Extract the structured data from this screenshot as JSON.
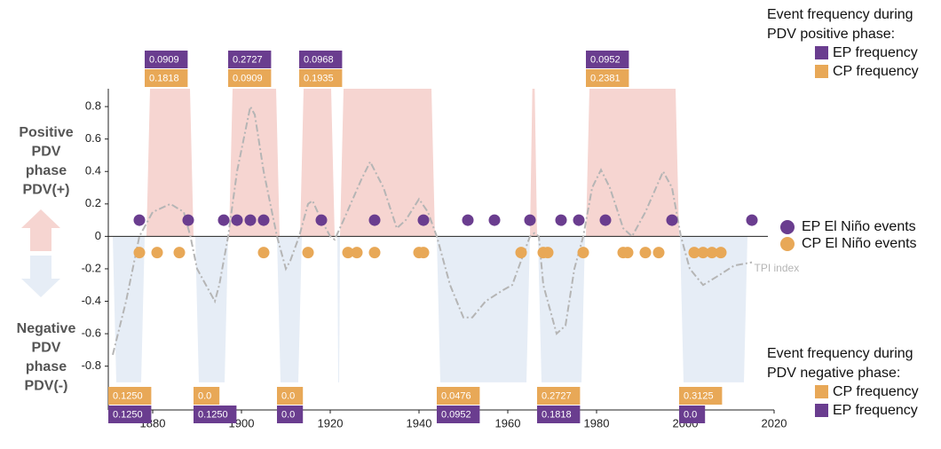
{
  "chart_data": {
    "type": "line",
    "xlim": [
      1870,
      2020
    ],
    "xticks": [
      1880,
      1900,
      1920,
      1940,
      1960,
      1980,
      2000,
      2020
    ],
    "ylim": [
      -1.07,
      0.91
    ],
    "yticks": [
      0.8,
      0.6,
      0.4,
      0.2,
      0,
      -0.2,
      -0.4,
      -0.6,
      -0.8
    ],
    "series": [
      {
        "name": "TPI index",
        "color": "#b5b5b5",
        "x": [
          1871,
          1874,
          1877,
          1880,
          1884,
          1887,
          1888.5,
          1890,
          1894,
          1895,
          1897,
          1899,
          1902,
          1903,
          1905,
          1908,
          1910,
          1911,
          1913,
          1915,
          1916,
          1918,
          1920,
          1921,
          1923,
          1927,
          1929,
          1932,
          1935,
          1937,
          1940,
          1942,
          1944,
          1947,
          1950,
          1952,
          1955,
          1959,
          1961,
          1963,
          1965,
          1966,
          1967,
          1968,
          1971,
          1973,
          1975,
          1977,
          1979,
          1981,
          1983,
          1986,
          1988,
          1991,
          1995,
          1997,
          1999,
          2001,
          2004,
          2007,
          2011,
          2015
        ],
        "values": [
          -0.73,
          -0.4,
          0,
          0.15,
          0.2,
          0.15,
          0,
          -0.2,
          -0.4,
          -0.3,
          0,
          0.4,
          0.8,
          0.75,
          0.4,
          0,
          -0.2,
          -0.15,
          0,
          0.2,
          0.22,
          0.1,
          0,
          -0.02,
          0.1,
          0.35,
          0.46,
          0.3,
          0.05,
          0.1,
          0.23,
          0.15,
          0,
          -0.3,
          -0.5,
          -0.5,
          -0.4,
          -0.33,
          -0.3,
          -0.15,
          0,
          0.02,
          0,
          -0.3,
          -0.6,
          -0.55,
          -0.2,
          0,
          0.3,
          0.41,
          0.3,
          0.05,
          0,
          0.15,
          0.4,
          0.3,
          0,
          -0.2,
          -0.3,
          -0.25,
          -0.18,
          -0.16
        ]
      }
    ],
    "events": [
      {
        "name": "EP El Niño events",
        "color": "#6a3d8f",
        "y": 0.1,
        "x": [
          1877,
          1888,
          1896,
          1899,
          1902,
          1905,
          1918,
          1930,
          1941,
          1951,
          1957,
          1965,
          1972,
          1976,
          1982,
          1997,
          2015
        ]
      },
      {
        "name": "CP El Niño events",
        "color": "#e8a857",
        "y": -0.1,
        "x": [
          1877,
          1881,
          1886,
          1905,
          1915,
          1924,
          1926,
          1930,
          1940,
          1941,
          1963,
          1968,
          1969,
          1977,
          1986,
          1987,
          1991,
          1994,
          2002,
          2004,
          2006,
          2008
        ]
      }
    ],
    "positive_phase": {
      "color": "#f6d5d1",
      "periods": [
        [
          1878.6,
          1889.2
        ],
        [
          1897.2,
          1908.6
        ],
        [
          1913.2,
          1921
        ],
        [
          1922.2,
          1943.6
        ],
        [
          1965,
          1966.6
        ],
        [
          1977.6,
          1998.6
        ]
      ]
    },
    "negative_phase": {
      "color": "#e6edf6",
      "periods": [
        [
          1871,
          1878.2
        ],
        [
          1889.6,
          1897
        ],
        [
          1908,
          1913.6
        ],
        [
          1921.6,
          1922.2
        ],
        [
          1944,
          1965
        ],
        [
          1966.8,
          1977.4
        ],
        [
          1998.8,
          2014
        ]
      ]
    },
    "phase_labels": {
      "positive": [
        "Positive",
        "PDV",
        "phase",
        "PDV(+)"
      ],
      "negative": [
        "Negative",
        "PDV",
        "phase",
        "PDV(-)"
      ]
    },
    "frequency_positive": {
      "title": [
        "Event frequency during",
        "PDV positive phase:"
      ],
      "x": [
        1878.2,
        1897,
        1913,
        1977.6
      ],
      "series": [
        {
          "name": "EP frequency",
          "color": "#6a3d8f",
          "values": [
            0.0909,
            0.2727,
            0.0968,
            0.0952
          ],
          "value_labels": [
            "0.0909",
            "0.2727",
            "0.0968",
            "0.0952"
          ]
        },
        {
          "name": "CP frequency",
          "color": "#e8a857",
          "values": [
            0.1818,
            0.0909,
            0.1935,
            0.2381
          ],
          "value_labels": [
            "0.1818",
            "0.0909",
            "0.1935",
            "0.2381"
          ]
        }
      ]
    },
    "frequency_negative": {
      "title": [
        "Event frequency during",
        "PDV negative phase:"
      ],
      "x": [
        1870,
        1889.2,
        1908,
        1944,
        1966.6,
        1998.6
      ],
      "series": [
        {
          "name": "CP frequency",
          "color": "#e8a857",
          "values": [
            0.125,
            0,
            0,
            0.0476,
            0.2727,
            0.3125
          ],
          "value_labels": [
            "0.1250",
            "0.0",
            "0.0",
            "0.0476",
            "0.2727",
            "0.3125"
          ]
        },
        {
          "name": "EP frequency",
          "color": "#6a3d8f",
          "values": [
            0.125,
            0.125,
            0,
            0.0952,
            0.1818,
            0
          ],
          "value_labels": [
            "0.1250",
            "0.1250",
            "0.0",
            "0.0952",
            "0.1818",
            "0.0"
          ]
        }
      ]
    }
  }
}
